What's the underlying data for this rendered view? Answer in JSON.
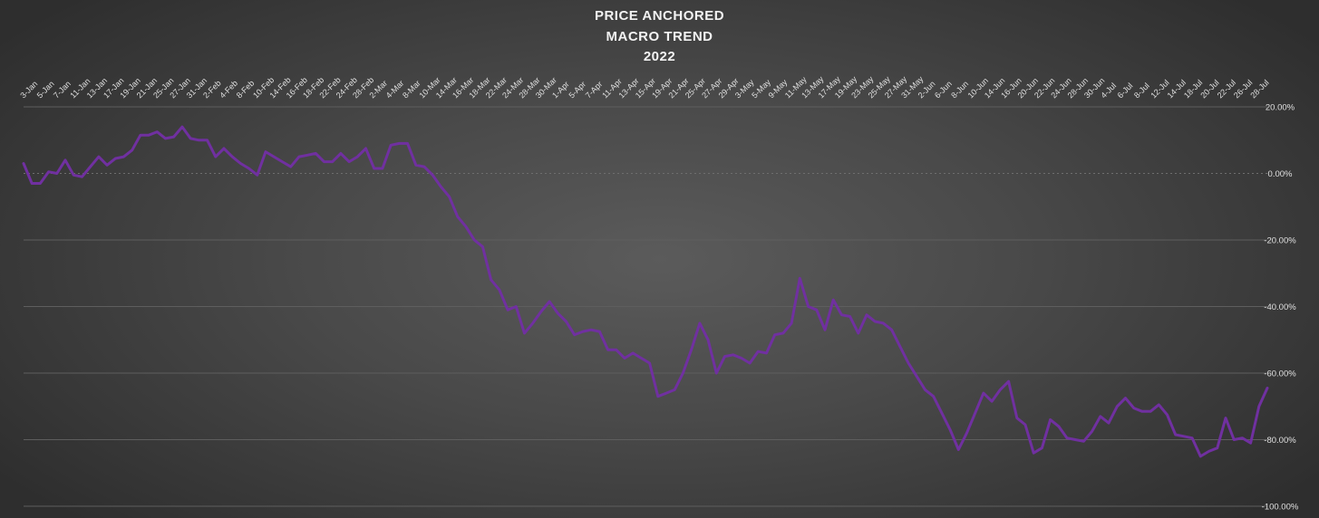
{
  "chart_data": {
    "type": "line",
    "title": [
      "PRICE ANCHORED",
      "MACRO TREND",
      "2022"
    ],
    "xlabel": "",
    "ylabel": "",
    "ylim": [
      -100,
      20
    ],
    "y_ticks": [
      20,
      0,
      -20,
      -40,
      -60,
      -80,
      -100
    ],
    "y_tick_labels": [
      "20.00%",
      "0.00%",
      "-20.00%",
      "-40.00%",
      "-60.00%",
      "-80.00%",
      "-100.00%"
    ],
    "x_tick_labels": [
      "3-Jan",
      "5-Jan",
      "7-Jan",
      "11-Jan",
      "13-Jan",
      "17-Jan",
      "19-Jan",
      "21-Jan",
      "25-Jan",
      "27-Jan",
      "31-Jan",
      "2-Feb",
      "4-Feb",
      "8-Feb",
      "10-Feb",
      "14-Feb",
      "16-Feb",
      "18-Feb",
      "22-Feb",
      "24-Feb",
      "28-Feb",
      "2-Mar",
      "4-Mar",
      "8-Mar",
      "10-Mar",
      "14-Mar",
      "16-Mar",
      "18-Mar",
      "22-Mar",
      "24-Mar",
      "28-Mar",
      "30-Mar",
      "1-Apr",
      "5-Apr",
      "7-Apr",
      "11-Apr",
      "13-Apr",
      "15-Apr",
      "19-Apr",
      "21-Apr",
      "25-Apr",
      "27-Apr",
      "29-Apr",
      "3-May",
      "5-May",
      "9-May",
      "11-May",
      "13-May",
      "17-May",
      "19-May",
      "23-May",
      "25-May",
      "27-May",
      "31-May",
      "2-Jun",
      "6-Jun",
      "8-Jun",
      "10-Jun",
      "14-Jun",
      "16-Jun",
      "20-Jun",
      "22-Jun",
      "24-Jun",
      "28-Jun",
      "30-Jun",
      "4-Jul",
      "6-Jul",
      "8-Jul",
      "12-Jul",
      "14-Jul",
      "18-Jul",
      "20-Jul",
      "22-Jul",
      "26-Jul",
      "28-Jul"
    ],
    "grid": true,
    "y_axis_position": "right",
    "x_axis_position": "top",
    "line_color": "#7030a0",
    "series": [
      {
        "values": [
          3.0,
          -3.0,
          -3.0,
          0.5,
          0.0,
          4.0,
          -0.5,
          -1.0,
          2.0,
          5.0,
          2.5,
          4.5,
          5.0,
          7.0,
          11.5,
          11.5,
          12.5,
          10.5,
          11.0,
          14.0,
          10.5,
          10.0,
          10.0,
          5.0,
          7.5,
          5.0,
          3.0,
          1.5,
          -0.5,
          6.5,
          5.0,
          3.5,
          2.0,
          5.0,
          5.5,
          6.0,
          3.5,
          3.5,
          6.0,
          3.5,
          5.0,
          7.5,
          1.5,
          1.5,
          8.5,
          9.0,
          9.0,
          2.5,
          2.0,
          -0.5,
          -4.0,
          -7.0,
          -13.0,
          -16.0,
          -20.0,
          -22.0,
          -32.0,
          -35.0,
          -41.0,
          -40.0,
          -48.0,
          -45.0,
          -41.5,
          -38.5,
          -42.0,
          -44.5,
          -48.5,
          -47.5,
          -47.0,
          -47.5,
          -53.0,
          -53.0,
          -55.5,
          -54.0,
          -55.5,
          -57.0,
          -67.0,
          -66.0,
          -65.0,
          -60.0,
          -53.0,
          -45.0,
          -50.0,
          -60.0,
          -55.0,
          -54.5,
          -55.5,
          -57.0,
          -53.5,
          -54.0,
          -48.5,
          -48.0,
          -45.0,
          -31.5,
          -40.0,
          -41.0,
          -47.0,
          -38.0,
          -42.5,
          -43.0,
          -48.0,
          -42.5,
          -44.5,
          -45.0,
          -47.0,
          -52.0,
          -57.0,
          -61.0,
          -65.0,
          -67.0,
          -72.0,
          -77.0,
          -83.0,
          -78.0,
          -72.0,
          -66.0,
          -68.5,
          -65.0,
          -62.5,
          -73.5,
          -75.5,
          -84.0,
          -82.5,
          -74.0,
          -76.0,
          -79.5,
          -80.0,
          -80.5,
          -77.5,
          -73.0,
          -75.0,
          -70.0,
          -67.5,
          -70.5,
          -71.5,
          -71.5,
          -69.5,
          -72.5,
          -78.5,
          -79.0,
          -79.5,
          -85.0,
          -83.5,
          -82.5,
          -73.5,
          -80.0,
          -79.5,
          -81.0,
          -70.0,
          -64.5
        ]
      }
    ]
  }
}
